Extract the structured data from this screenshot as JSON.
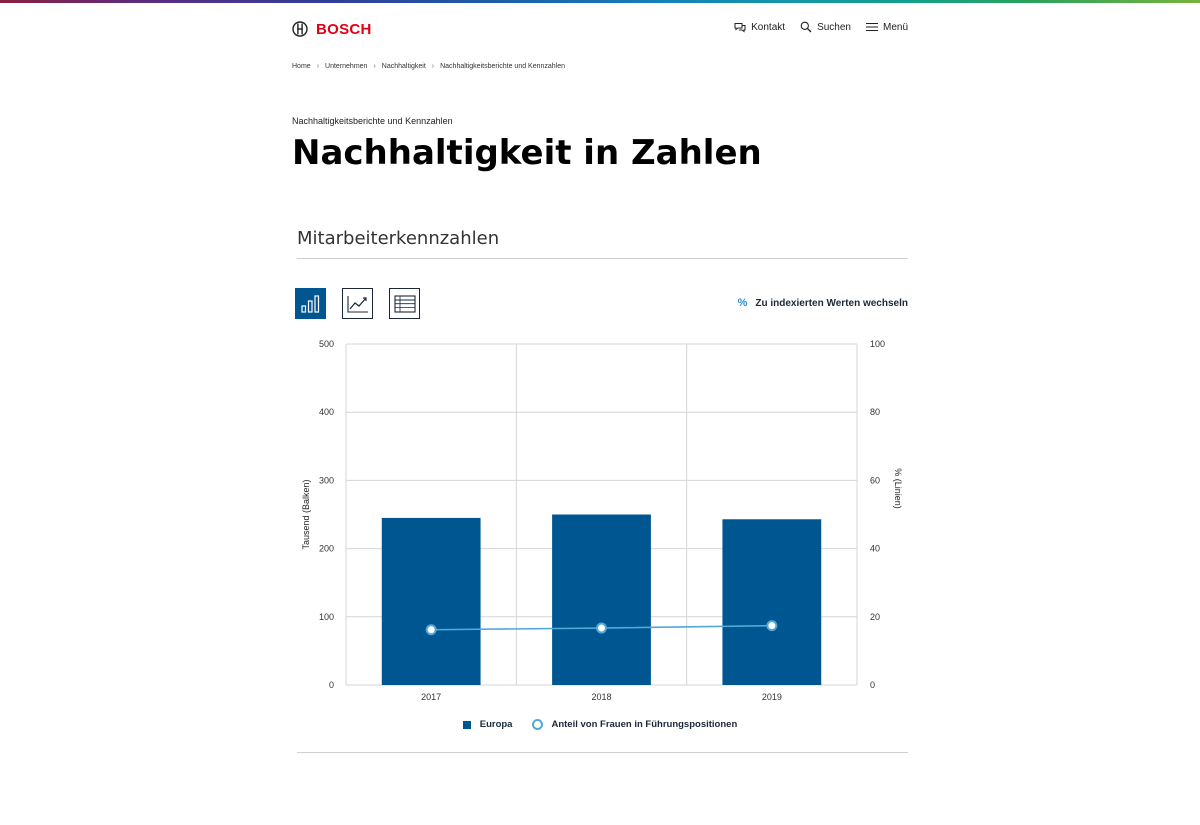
{
  "brand": {
    "name": "BOSCH",
    "color": "#e20015"
  },
  "nav": {
    "contact": {
      "label": "Kontakt",
      "icon": "chat-icon"
    },
    "search": {
      "label": "Suchen",
      "icon": "search-icon"
    },
    "menu": {
      "label": "Menü",
      "icon": "hamburger-icon"
    }
  },
  "breadcrumb": [
    "Home",
    "Unternehmen",
    "Nachhaltigkeit",
    "Nachhaltigkeitsberichte und Kennzahlen"
  ],
  "eyebrow": "Nachhaltigkeitsberichte und Kennzahlen",
  "page_title": "Nachhaltigkeit in Zahlen",
  "section_title": "Mitarbeiterkennzahlen",
  "view_buttons": [
    {
      "icon": "bar-chart-icon",
      "active": true
    },
    {
      "icon": "line-chart-icon",
      "active": false
    },
    {
      "icon": "table-icon",
      "active": false
    }
  ],
  "toggle": {
    "symbol": "%",
    "label": "Zu indexierten Werten wechseln"
  },
  "colors": {
    "bar": "#005691",
    "line": "#54a8d6",
    "grid": "#d3d5d7"
  },
  "chart_data": {
    "type": "bar",
    "categories": [
      "2017",
      "2018",
      "2019"
    ],
    "series": [
      {
        "name": "Europa",
        "type": "bar",
        "axis": "left",
        "values": [
          245,
          250,
          243
        ]
      },
      {
        "name": "Anteil von Frauen in Führungspositionen",
        "type": "line",
        "axis": "right",
        "values": [
          16.2,
          16.7,
          17.4
        ]
      }
    ],
    "ylabel": "Tausend (Balken)",
    "ylabel_right": "% (Linien)",
    "ylim": [
      0,
      500
    ],
    "ylim_right": [
      0,
      100
    ],
    "yticks": [
      "0",
      "100",
      "200",
      "300",
      "400",
      "500"
    ],
    "yticks_right": [
      "0",
      "20",
      "40",
      "60",
      "80",
      "100"
    ],
    "grid": true,
    "legend_position": "bottom-center"
  }
}
